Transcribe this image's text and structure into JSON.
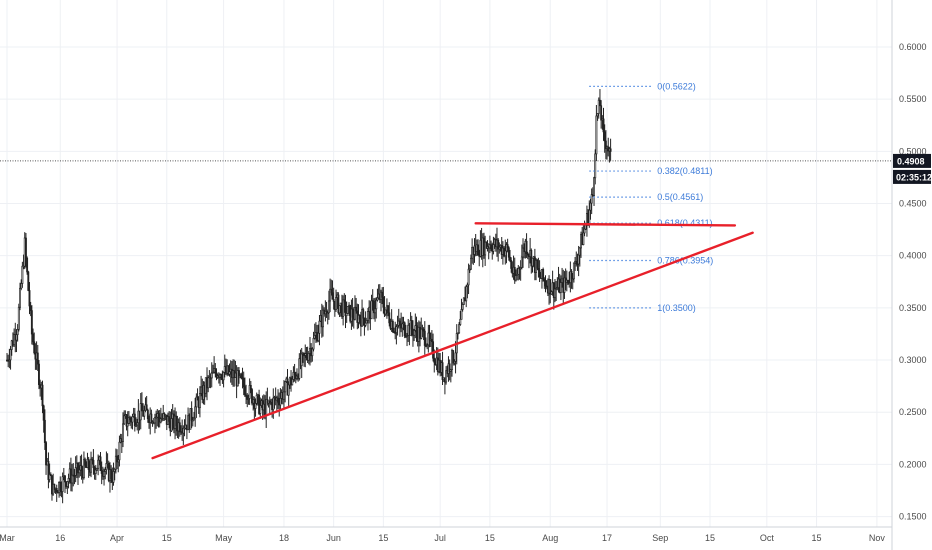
{
  "chart_data": {
    "type": "candlestick",
    "title": "",
    "xlabel": "",
    "ylabel": "",
    "ylim": [
      0.14,
      0.645
    ],
    "y_ticks": [
      "0.6000",
      "0.5500",
      "0.5000",
      "0.4500",
      "0.4000",
      "0.3500",
      "0.3000",
      "0.2500",
      "0.2000",
      "0.1500"
    ],
    "y_tick_values": [
      0.6,
      0.55,
      0.5,
      0.45,
      0.4,
      0.35,
      0.3,
      0.25,
      0.2,
      0.15
    ],
    "x_range": [
      "2020-03-01",
      "2020-11-03"
    ],
    "x_ticks": [
      {
        "label": "Mar",
        "date": "2020-03-01"
      },
      {
        "label": "16",
        "date": "2020-03-16"
      },
      {
        "label": "Apr",
        "date": "2020-04-01"
      },
      {
        "label": "15",
        "date": "2020-04-15"
      },
      {
        "label": "May",
        "date": "2020-05-01"
      },
      {
        "label": "18",
        "date": "2020-05-18"
      },
      {
        "label": "Jun",
        "date": "2020-06-01"
      },
      {
        "label": "15",
        "date": "2020-06-15"
      },
      {
        "label": "Jul",
        "date": "2020-07-01"
      },
      {
        "label": "15",
        "date": "2020-07-15"
      },
      {
        "label": "Aug",
        "date": "2020-08-01"
      },
      {
        "label": "17",
        "date": "2020-08-17"
      },
      {
        "label": "Sep",
        "date": "2020-09-01"
      },
      {
        "label": "15",
        "date": "2020-09-15"
      },
      {
        "label": "Oct",
        "date": "2020-10-01"
      },
      {
        "label": "15",
        "date": "2020-10-15"
      },
      {
        "label": "Nov",
        "date": "2020-11-01"
      }
    ],
    "price_anchors": [
      [
        "2020-03-01",
        0.3
      ],
      [
        "2020-03-04",
        0.335
      ],
      [
        "2020-03-06",
        0.41
      ],
      [
        "2020-03-08",
        0.325
      ],
      [
        "2020-03-11",
        0.265
      ],
      [
        "2020-03-12",
        0.2
      ],
      [
        "2020-03-14",
        0.175
      ],
      [
        "2020-03-17",
        0.185
      ],
      [
        "2020-03-22",
        0.195
      ],
      [
        "2020-03-27",
        0.2
      ],
      [
        "2020-03-31",
        0.188
      ],
      [
        "2020-04-03",
        0.24
      ],
      [
        "2020-04-08",
        0.25
      ],
      [
        "2020-04-13",
        0.245
      ],
      [
        "2020-04-18",
        0.238
      ],
      [
        "2020-04-21",
        0.24
      ],
      [
        "2020-04-26",
        0.275
      ],
      [
        "2020-04-29",
        0.29
      ],
      [
        "2020-05-04",
        0.285
      ],
      [
        "2020-05-08",
        0.27
      ],
      [
        "2020-05-12",
        0.252
      ],
      [
        "2020-05-17",
        0.265
      ],
      [
        "2020-05-21",
        0.285
      ],
      [
        "2020-05-26",
        0.315
      ],
      [
        "2020-05-31",
        0.36
      ],
      [
        "2020-06-05",
        0.345
      ],
      [
        "2020-06-10",
        0.34
      ],
      [
        "2020-06-14",
        0.36
      ],
      [
        "2020-06-18",
        0.332
      ],
      [
        "2020-06-23",
        0.33
      ],
      [
        "2020-06-27",
        0.322
      ],
      [
        "2020-06-30",
        0.3
      ],
      [
        "2020-07-02",
        0.285
      ],
      [
        "2020-07-05",
        0.305
      ],
      [
        "2020-07-07",
        0.34
      ],
      [
        "2020-07-10",
        0.405
      ],
      [
        "2020-07-15",
        0.412
      ],
      [
        "2020-07-20",
        0.405
      ],
      [
        "2020-07-22",
        0.375
      ],
      [
        "2020-07-25",
        0.412
      ],
      [
        "2020-07-29",
        0.38
      ],
      [
        "2020-08-02",
        0.368
      ],
      [
        "2020-08-05",
        0.372
      ],
      [
        "2020-08-08",
        0.39
      ],
      [
        "2020-08-11",
        0.43
      ],
      [
        "2020-08-13",
        0.458
      ],
      [
        "2020-08-14",
        0.53
      ],
      [
        "2020-08-15",
        0.545
      ],
      [
        "2020-08-16",
        0.512
      ],
      [
        "2020-08-17",
        0.508
      ],
      [
        "2020-08-18",
        0.492
      ]
    ],
    "current_price": "0.4908",
    "countdown": "02:35:12",
    "fibonacci_levels": [
      {
        "label": "0(0.5622)",
        "value": 0.5622
      },
      {
        "label": "0.382(0.4811)",
        "value": 0.4811
      },
      {
        "label": "0.5(0.4561)",
        "value": 0.4561
      },
      {
        "label": "0.618(0.4311)",
        "value": 0.4311
      },
      {
        "label": "0.786(0.3954)",
        "value": 0.3954
      },
      {
        "label": "1(0.3500)",
        "value": 0.35
      }
    ],
    "fib_range": [
      "2020-08-12",
      "2020-08-30"
    ],
    "trendlines": [
      {
        "name": "support",
        "from": [
          "2020-04-11",
          0.206
        ],
        "to": [
          "2020-09-27",
          0.422
        ]
      },
      {
        "name": "resistance",
        "from": [
          "2020-07-11",
          0.431
        ],
        "to": [
          "2020-09-22",
          0.429
        ]
      }
    ],
    "grid": true
  },
  "colors": {
    "candle": "#222222",
    "trendline": "#e8202a",
    "fib": "#4a86e0",
    "price_line": "#555555",
    "price_tag": "#131722",
    "grid": "#eef0f4",
    "axis_text": "#4a4a4a"
  }
}
